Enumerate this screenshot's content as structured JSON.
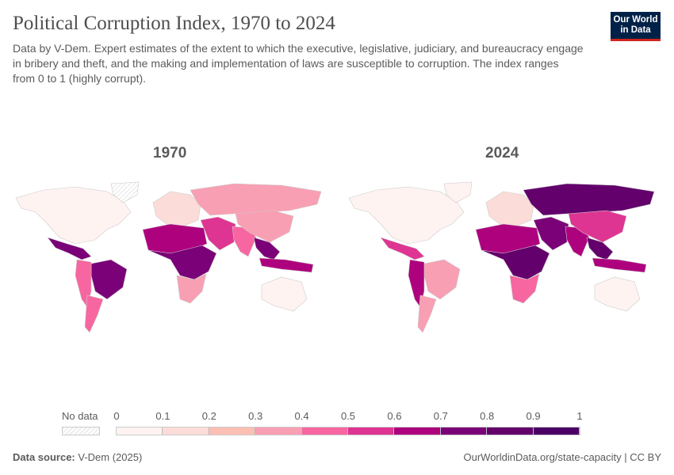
{
  "header": {
    "title": "Political Corruption Index, 1970 to 2024",
    "subtitle": "Data by V-Dem. Expert estimates of the extent to which the executive, legislative, judiciary, and bureaucracy engage in bribery and theft, and the making and implementation of laws are susceptible to corruption. The index ranges from 0 to 1 (highly corrupt).",
    "logo": "Our World in Data"
  },
  "legend": {
    "no_data_label": "No data",
    "ticks": [
      "0",
      "0.1",
      "0.2",
      "0.3",
      "0.4",
      "0.5",
      "0.6",
      "0.7",
      "0.8",
      "0.9",
      "1"
    ],
    "colors": [
      "#fef3f0",
      "#fcdcd8",
      "#fbbfb4",
      "#f99fb3",
      "#f766a0",
      "#df3592",
      "#ae017e",
      "#7a0177",
      "#63006c",
      "#4b0066"
    ]
  },
  "maps": [
    {
      "year": "1970",
      "values": {
        "north-america": 0.05,
        "greenland": null,
        "central-america": 0.72,
        "brazil": 0.72,
        "andes": 0.4,
        "southern-cone": 0.4,
        "europe": 0.1,
        "russia": 0.35,
        "middle-east": 0.5,
        "north-africa": 0.6,
        "central-africa": 0.75,
        "southern-africa": 0.35,
        "south-asia": 0.45,
        "china": 0.3,
        "southeast-asia": 0.75,
        "indonesia": 0.65,
        "australia": 0.05
      }
    },
    {
      "year": "2024",
      "values": {
        "north-america": 0.05,
        "greenland": 0.05,
        "central-america": 0.55,
        "brazil": 0.35,
        "andes": 0.65,
        "southern-cone": 0.3,
        "europe": 0.1,
        "russia": 0.85,
        "middle-east": 0.75,
        "north-africa": 0.6,
        "central-africa": 0.85,
        "southern-africa": 0.45,
        "south-asia": 0.6,
        "china": 0.55,
        "southeast-asia": 0.85,
        "indonesia": 0.6,
        "australia": 0.05
      }
    }
  ],
  "footer": {
    "source_label": "Data source:",
    "source": "V-Dem (2025)",
    "link": "OurWorldinData.org/state-capacity | CC BY"
  }
}
